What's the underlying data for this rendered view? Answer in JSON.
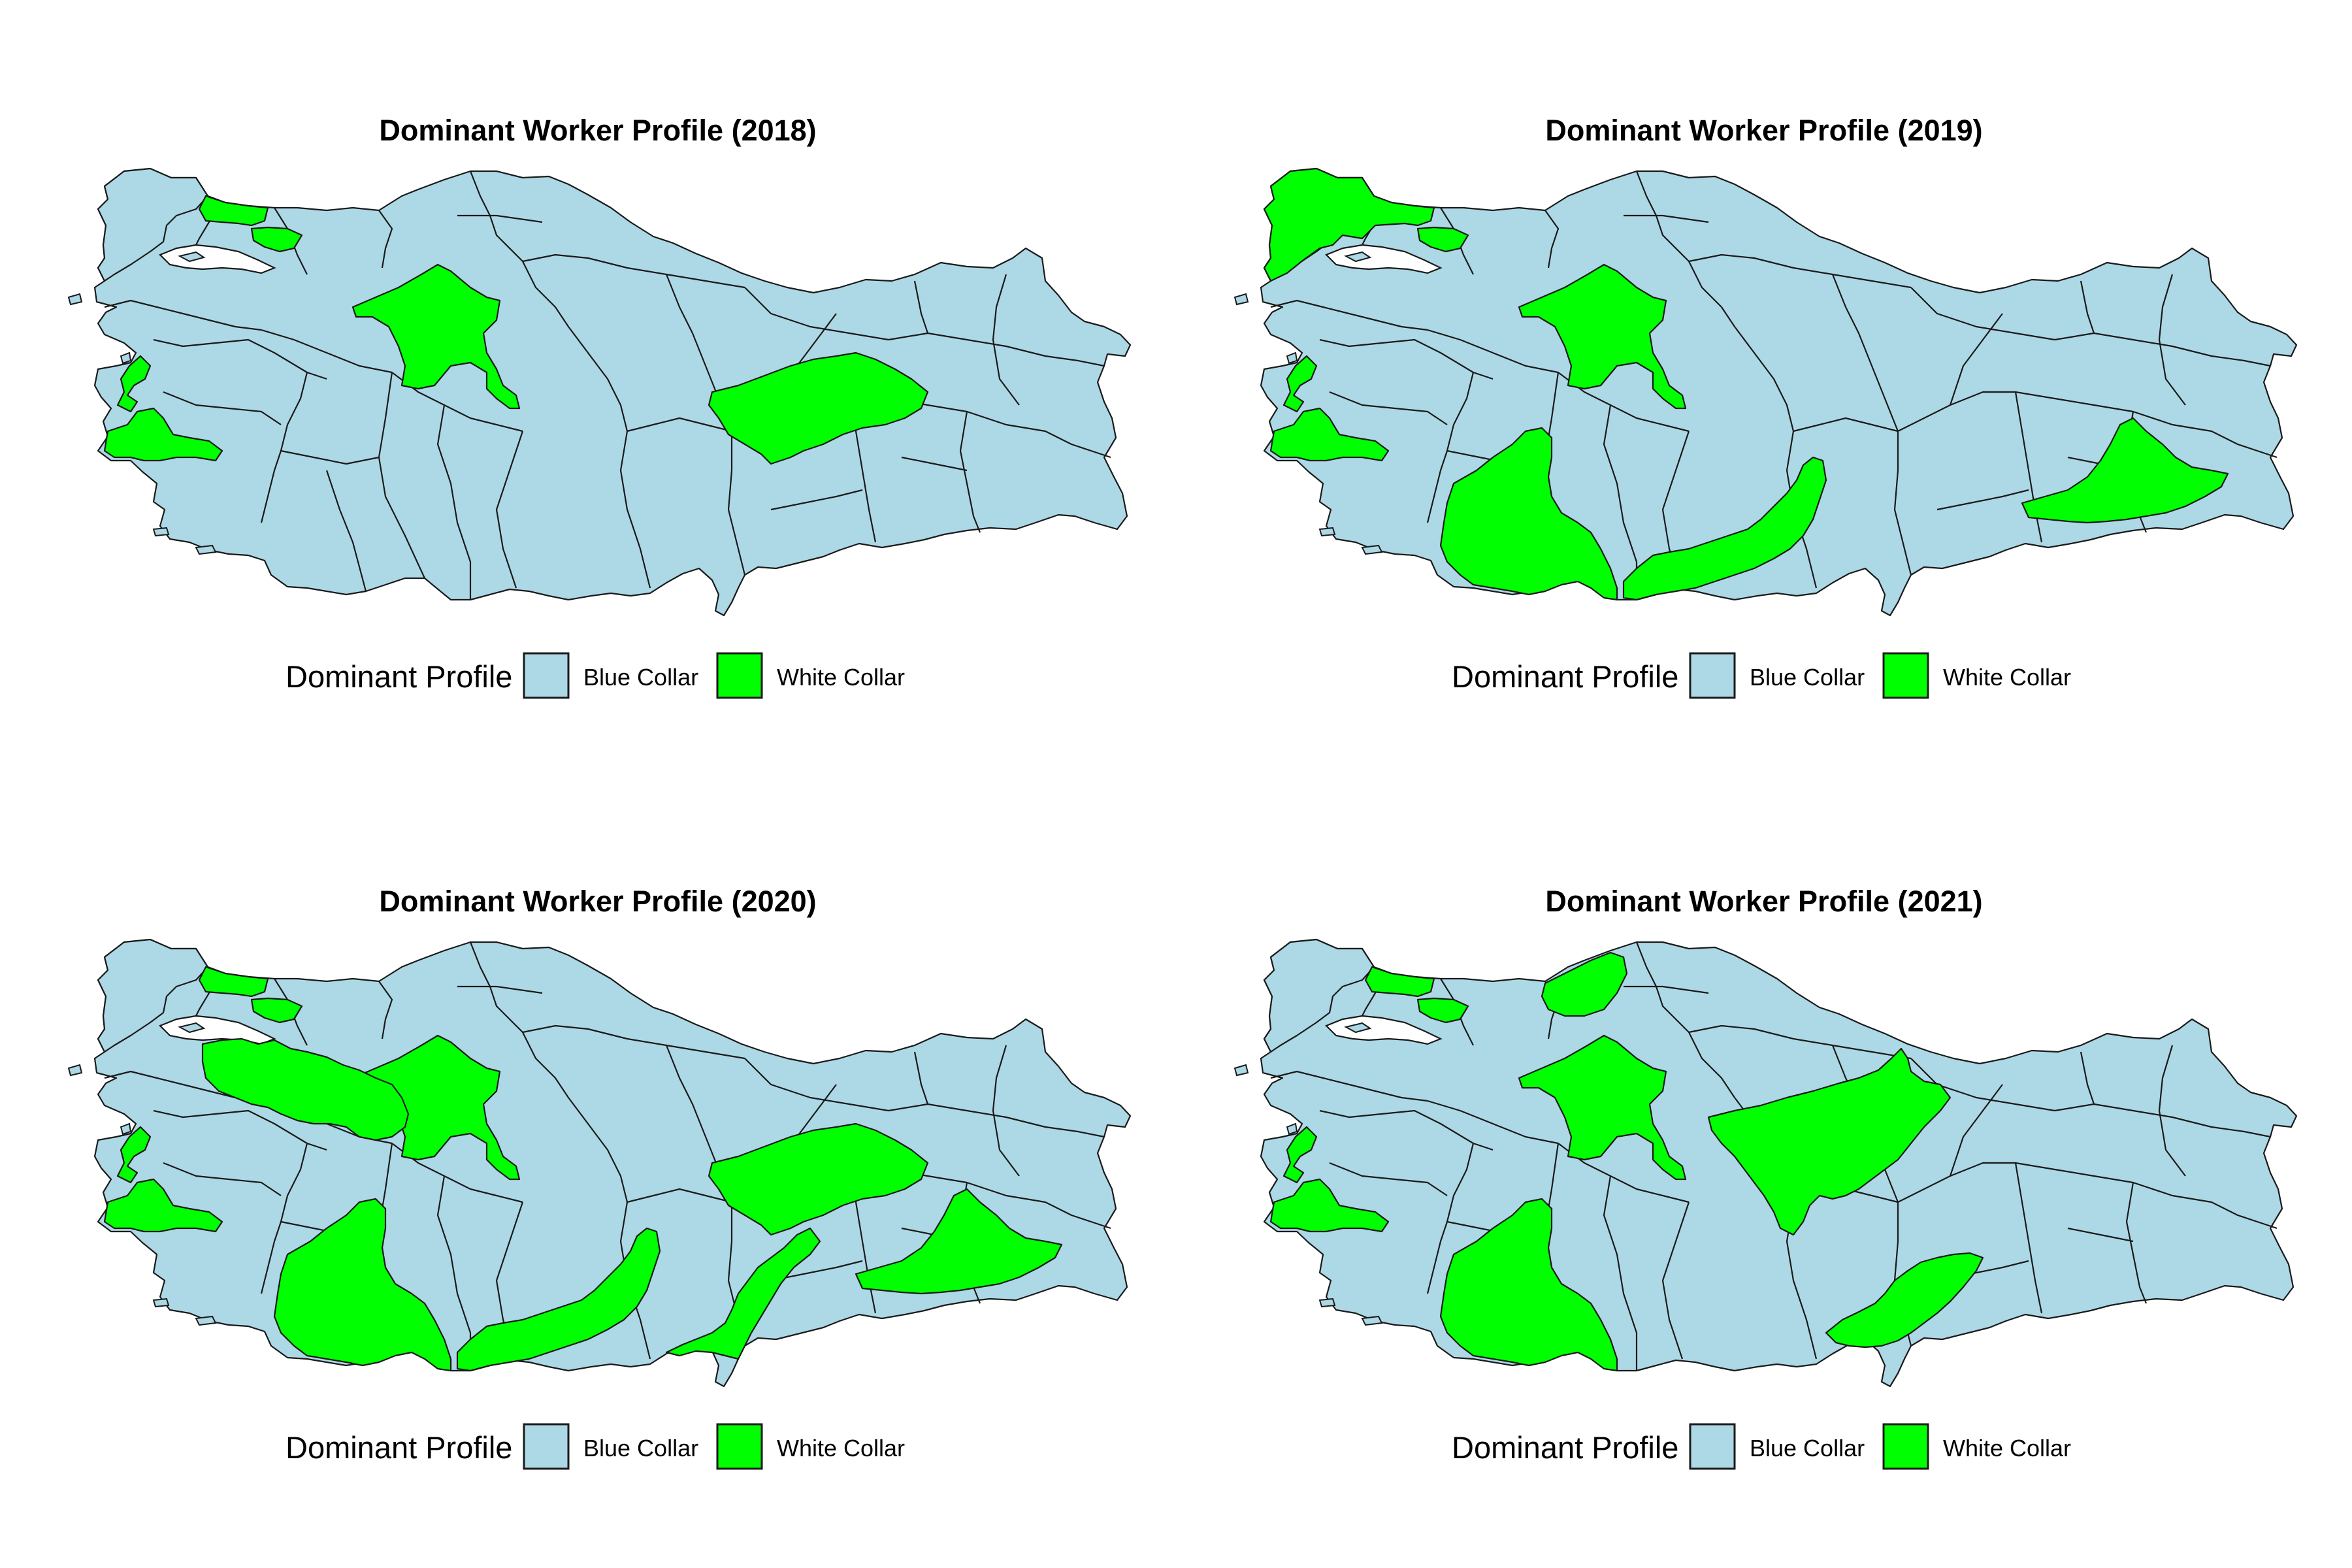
{
  "colors": {
    "blue_collar": "#add8e6",
    "white_collar": "#00ff00"
  },
  "panels": [
    {
      "title": "Dominant Worker Profile (2018)",
      "legend": {
        "title": "Dominant Profile",
        "items": [
          {
            "label": "Blue Collar",
            "key": "blue_collar"
          },
          {
            "label": "White Collar",
            "key": "white_collar"
          }
        ]
      },
      "white_collar_regions": [
        "istanbul",
        "kocaeli",
        "ankara",
        "izmir",
        "manisa-west",
        "malatya-sivas"
      ]
    },
    {
      "title": "Dominant Worker Profile (2019)",
      "legend": {
        "title": "Dominant Profile",
        "items": [
          {
            "label": "Blue Collar",
            "key": "blue_collar"
          },
          {
            "label": "White Collar",
            "key": "white_collar"
          }
        ]
      },
      "white_collar_regions": [
        "edirne-istanbul",
        "kocaeli",
        "ankara",
        "izmir",
        "manisa-west",
        "antalya",
        "mersin",
        "diyarbakir"
      ]
    },
    {
      "title": "Dominant Worker Profile (2020)",
      "legend": {
        "title": "Dominant Profile",
        "items": [
          {
            "label": "Blue Collar",
            "key": "blue_collar"
          },
          {
            "label": "White Collar",
            "key": "white_collar"
          }
        ]
      },
      "white_collar_regions": [
        "istanbul",
        "kocaeli",
        "bursa-bilecik",
        "ankara",
        "izmir",
        "manisa-west",
        "antalya",
        "mersin",
        "malatya-sivas",
        "adana-kahramanmaras",
        "diyarbakir"
      ]
    },
    {
      "title": "Dominant Worker Profile (2021)",
      "legend": {
        "title": "Dominant Profile",
        "items": [
          {
            "label": "Blue Collar",
            "key": "blue_collar"
          },
          {
            "label": "White Collar",
            "key": "white_collar"
          }
        ]
      },
      "white_collar_regions": [
        "istanbul",
        "kocaeli",
        "kastamonu",
        "ankara",
        "kayseri-sivas",
        "izmir",
        "manisa-west",
        "antalya",
        "gaziantep"
      ]
    }
  ]
}
